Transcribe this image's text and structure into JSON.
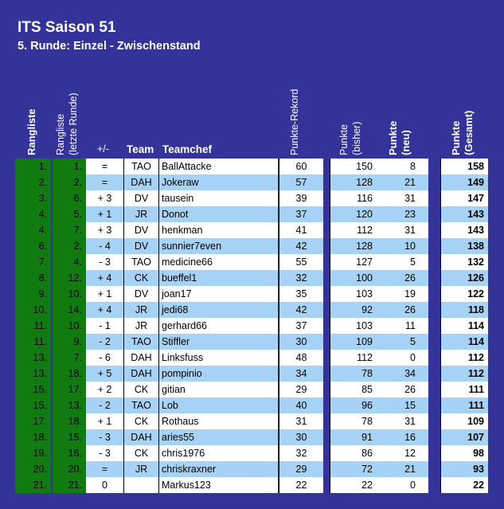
{
  "title": "ITS Saison 51",
  "subtitle": "5. Runde: Einzel - Zwischenstand",
  "headers": {
    "rangliste": "Rangliste",
    "rangliste_letzte_1": "Rangliste",
    "rangliste_letzte_2": "(letzte Runde)",
    "diff": "+/-",
    "team": "Team",
    "teamchef": "Teamchef",
    "rekord": "Punkte-Rekord",
    "bisher_1": "Punkte",
    "bisher_2": "(bisher)",
    "neu_1": "Punkte",
    "neu_2": "(neu)",
    "gesamt_1": "Punkte",
    "gesamt_2": "(Gesamt)"
  },
  "rows": [
    {
      "rank": "1.",
      "prev": "1.",
      "diff": "=",
      "team": "TAO",
      "chef": "BallAttacke",
      "rekord": "60",
      "bisher": "150",
      "neu": "8",
      "gesamt": "158"
    },
    {
      "rank": "2.",
      "prev": "2.",
      "diff": "=",
      "team": "DAH",
      "chef": "Jokeraw",
      "rekord": "57",
      "bisher": "128",
      "neu": "21",
      "gesamt": "149"
    },
    {
      "rank": "3.",
      "prev": "6.",
      "diff": "+ 3",
      "team": "DV",
      "chef": "tausein",
      "rekord": "39",
      "bisher": "116",
      "neu": "31",
      "gesamt": "147"
    },
    {
      "rank": "4.",
      "prev": "5.",
      "diff": "+ 1",
      "team": "JR",
      "chef": "Donot",
      "rekord": "37",
      "bisher": "120",
      "neu": "23",
      "gesamt": "143"
    },
    {
      "rank": "4.",
      "prev": "7.",
      "diff": "+ 3",
      "team": "DV",
      "chef": "henkman",
      "rekord": "41",
      "bisher": "112",
      "neu": "31",
      "gesamt": "143"
    },
    {
      "rank": "6.",
      "prev": "2.",
      "diff": "- 4",
      "team": "DV",
      "chef": "sunnier7even",
      "rekord": "42",
      "bisher": "128",
      "neu": "10",
      "gesamt": "138"
    },
    {
      "rank": "7.",
      "prev": "4.",
      "diff": "- 3",
      "team": "TAO",
      "chef": "medicine66",
      "rekord": "55",
      "bisher": "127",
      "neu": "5",
      "gesamt": "132"
    },
    {
      "rank": "8.",
      "prev": "12.",
      "diff": "+ 4",
      "team": "CK",
      "chef": "bueffel1",
      "rekord": "32",
      "bisher": "100",
      "neu": "26",
      "gesamt": "126"
    },
    {
      "rank": "9.",
      "prev": "10.",
      "diff": "+ 1",
      "team": "DV",
      "chef": "joan17",
      "rekord": "35",
      "bisher": "103",
      "neu": "19",
      "gesamt": "122"
    },
    {
      "rank": "10.",
      "prev": "14.",
      "diff": "+ 4",
      "team": "JR",
      "chef": "jedi68",
      "rekord": "42",
      "bisher": "92",
      "neu": "26",
      "gesamt": "118"
    },
    {
      "rank": "11.",
      "prev": "10.",
      "diff": "- 1",
      "team": "JR",
      "chef": "gerhard66",
      "rekord": "37",
      "bisher": "103",
      "neu": "11",
      "gesamt": "114"
    },
    {
      "rank": "11.",
      "prev": "9.",
      "diff": "- 2",
      "team": "TAO",
      "chef": "Stiffler",
      "rekord": "30",
      "bisher": "109",
      "neu": "5",
      "gesamt": "114"
    },
    {
      "rank": "13.",
      "prev": "7.",
      "diff": "- 6",
      "team": "DAH",
      "chef": "Linksfuss",
      "rekord": "48",
      "bisher": "112",
      "neu": "0",
      "gesamt": "112"
    },
    {
      "rank": "13.",
      "prev": "18.",
      "diff": "+ 5",
      "team": "DAH",
      "chef": "pompinio",
      "rekord": "34",
      "bisher": "78",
      "neu": "34",
      "gesamt": "112"
    },
    {
      "rank": "15.",
      "prev": "17.",
      "diff": "+ 2",
      "team": "CK",
      "chef": "gitian",
      "rekord": "29",
      "bisher": "85",
      "neu": "26",
      "gesamt": "111"
    },
    {
      "rank": "15.",
      "prev": "13.",
      "diff": "- 2",
      "team": "TAO",
      "chef": "Lob",
      "rekord": "40",
      "bisher": "96",
      "neu": "15",
      "gesamt": "111"
    },
    {
      "rank": "17.",
      "prev": "18.",
      "diff": "+ 1",
      "team": "CK",
      "chef": "Rothaus",
      "rekord": "31",
      "bisher": "78",
      "neu": "31",
      "gesamt": "109"
    },
    {
      "rank": "18.",
      "prev": "15.",
      "diff": "- 3",
      "team": "DAH",
      "chef": "aries55",
      "rekord": "30",
      "bisher": "91",
      "neu": "16",
      "gesamt": "107"
    },
    {
      "rank": "19.",
      "prev": "16.",
      "diff": "- 3",
      "team": "CK",
      "chef": "chris1976",
      "rekord": "32",
      "bisher": "86",
      "neu": "12",
      "gesamt": "98"
    },
    {
      "rank": "20.",
      "prev": "20.",
      "diff": "=",
      "team": "JR",
      "chef": "chriskraxner",
      "rekord": "29",
      "bisher": "72",
      "neu": "21",
      "gesamt": "93"
    },
    {
      "rank": "21.",
      "prev": "21.",
      "diff": "0",
      "team": "",
      "chef": "Markus123",
      "rekord": "22",
      "bisher": "22",
      "neu": "0",
      "gesamt": "22"
    }
  ],
  "colors": {
    "rank_bg": "#107c10",
    "row_white": "#ffffff",
    "row_blue": "#a6d3f5",
    "page_bg": "#333399"
  }
}
